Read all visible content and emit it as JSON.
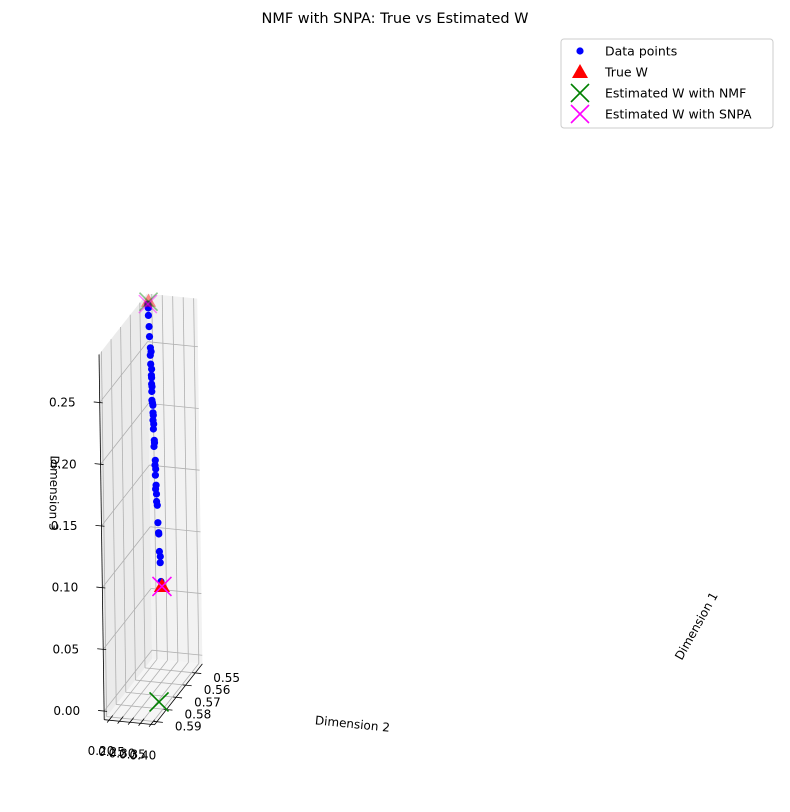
{
  "chart_data": {
    "type": "scatter",
    "title": "NMF with SNPA: True vs Estimated W",
    "xlabel": "Dimension 1",
    "ylabel": "Dimension 2",
    "zlabel": "Dimension 3",
    "x_ticks": [
      0.55,
      0.56,
      0.57,
      0.58,
      0.59
    ],
    "y_ticks": [
      0.2,
      0.25,
      0.3,
      0.35,
      0.4
    ],
    "z_ticks": [
      0.0,
      0.05,
      0.1,
      0.15,
      0.2,
      0.25
    ],
    "x_tick_labels": [
      "0.55",
      "0.56",
      "0.57",
      "0.58",
      "0.59"
    ],
    "y_tick_labels": [
      "0.20",
      "0.25",
      "0.30",
      "0.35",
      "0.40"
    ],
    "z_tick_labels": [
      "0.00",
      "0.05",
      "0.10",
      "0.15",
      "0.20",
      "0.25"
    ],
    "grid": true,
    "legend_position": "top-right",
    "series": [
      {
        "name": "Data points",
        "marker": "circle",
        "color": "#0000ff",
        "points": [
          [
            0.544,
            0.187,
            0.282
          ],
          [
            0.544,
            0.188,
            0.281
          ],
          [
            0.544,
            0.189,
            0.279
          ],
          [
            0.545,
            0.194,
            0.274
          ],
          [
            0.546,
            0.201,
            0.266
          ],
          [
            0.547,
            0.207,
            0.259
          ],
          [
            0.548,
            0.215,
            0.251
          ],
          [
            0.548,
            0.218,
            0.248
          ],
          [
            0.549,
            0.219,
            0.246
          ],
          [
            0.55,
            0.225,
            0.24
          ],
          [
            0.55,
            0.229,
            0.236
          ],
          [
            0.551,
            0.232,
            0.232
          ],
          [
            0.551,
            0.233,
            0.23
          ],
          [
            0.552,
            0.237,
            0.226
          ],
          [
            0.552,
            0.239,
            0.224
          ],
          [
            0.553,
            0.242,
            0.221
          ],
          [
            0.554,
            0.247,
            0.215
          ],
          [
            0.554,
            0.249,
            0.213
          ],
          [
            0.554,
            0.251,
            0.211
          ],
          [
            0.555,
            0.256,
            0.206
          ],
          [
            0.555,
            0.257,
            0.204
          ],
          [
            0.556,
            0.26,
            0.201
          ],
          [
            0.556,
            0.263,
            0.198
          ],
          [
            0.557,
            0.266,
            0.195
          ],
          [
            0.558,
            0.274,
            0.187
          ],
          [
            0.558,
            0.275,
            0.185
          ],
          [
            0.559,
            0.277,
            0.183
          ],
          [
            0.56,
            0.287,
            0.173
          ],
          [
            0.561,
            0.29,
            0.17
          ],
          [
            0.561,
            0.293,
            0.167
          ],
          [
            0.562,
            0.296,
            0.163
          ],
          [
            0.563,
            0.303,
            0.156
          ],
          [
            0.564,
            0.305,
            0.154
          ],
          [
            0.564,
            0.309,
            0.15
          ],
          [
            0.565,
            0.314,
            0.145
          ],
          [
            0.565,
            0.317,
            0.142
          ],
          [
            0.567,
            0.328,
            0.13
          ],
          [
            0.568,
            0.335,
            0.123
          ],
          [
            0.568,
            0.336,
            0.122
          ],
          [
            0.57,
            0.347,
            0.11
          ],
          [
            0.57,
            0.351,
            0.106
          ],
          [
            0.571,
            0.355,
            0.102
          ],
          [
            0.573,
            0.367,
            0.089
          ]
        ]
      },
      {
        "name": "True W",
        "marker": "triangle",
        "color": "#ff0000",
        "points": [
          [
            0.543,
            0.186,
            0.283
          ],
          [
            0.573,
            0.371,
            0.085
          ]
        ]
      },
      {
        "name": "Estimated W with NMF",
        "marker": "x",
        "color": "#008000",
        "points": [
          [
            0.543,
            0.186,
            0.283
          ],
          [
            0.586,
            0.41,
            0.005
          ]
        ]
      },
      {
        "name": "Estimated W with SNPA",
        "marker": "x",
        "color": "#ff00ff",
        "points": [
          [
            0.544,
            0.187,
            0.282
          ],
          [
            0.573,
            0.371,
            0.085
          ]
        ]
      }
    ]
  }
}
